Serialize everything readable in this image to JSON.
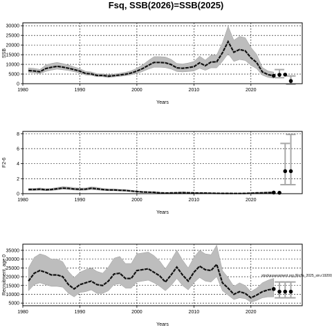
{
  "title": "Fsq, SSB(2026)=SSB(2025)",
  "chart_data": [
    {
      "type": "line",
      "ylabel": "SSB",
      "xlabel": "Years",
      "xlim": [
        1980,
        2029
      ],
      "ylim": [
        0,
        31500
      ],
      "xticks": [
        1980,
        1990,
        2000,
        2010,
        2020
      ],
      "yticks": [
        0,
        5000,
        10000,
        15000,
        20000,
        25000,
        30000
      ],
      "grid": true,
      "years": [
        1981,
        1982,
        1983,
        1984,
        1985,
        1986,
        1987,
        1988,
        1989,
        1990,
        1991,
        1992,
        1993,
        1994,
        1995,
        1996,
        1997,
        1998,
        1999,
        2000,
        2001,
        2002,
        2003,
        2004,
        2005,
        2006,
        2007,
        2008,
        2009,
        2010,
        2011,
        2012,
        2013,
        2014,
        2015,
        2016,
        2017,
        2018,
        2019,
        2020,
        2021,
        2022,
        2023,
        2024
      ],
      "estimate": [
        6800,
        6600,
        6200,
        7800,
        8500,
        9000,
        8600,
        8000,
        7300,
        6500,
        5300,
        5100,
        4300,
        4300,
        3900,
        4200,
        4500,
        4900,
        5500,
        6500,
        7800,
        9500,
        11000,
        11000,
        10800,
        9900,
        8200,
        8000,
        8300,
        8800,
        10800,
        9300,
        11200,
        11300,
        16000,
        21800,
        16300,
        17700,
        17000,
        13400,
        11000,
        6100,
        4700,
        4100
      ],
      "lower": [
        5800,
        5600,
        5200,
        6300,
        7000,
        7500,
        7200,
        6800,
        6200,
        5500,
        4500,
        4300,
        3600,
        3600,
        3200,
        3500,
        3800,
        4100,
        4600,
        5300,
        6300,
        7500,
        8500,
        8500,
        8300,
        7600,
        6300,
        6100,
        6300,
        6600,
        8000,
        6900,
        8200,
        8200,
        11500,
        15500,
        11500,
        12500,
        12000,
        9500,
        7800,
        4400,
        3300,
        2800
      ],
      "upper": [
        8200,
        7900,
        7400,
        9600,
        10500,
        11000,
        10400,
        9700,
        8700,
        7800,
        6400,
        6100,
        5200,
        5100,
        4700,
        5000,
        5400,
        5900,
        6700,
        8000,
        9700,
        12000,
        14000,
        14000,
        13800,
        12600,
        10500,
        10200,
        10700,
        11500,
        14300,
        12200,
        14800,
        14900,
        21200,
        29700,
        22500,
        24500,
        23800,
        18800,
        15200,
        8400,
        6600,
        6000
      ],
      "points": [
        {
          "x": 2024,
          "y": 4100
        },
        {
          "x": 2025,
          "y": 4600
        },
        {
          "x": 2026,
          "y": 4700
        },
        {
          "x": 2027,
          "y": 1400
        }
      ],
      "intervals": [
        {
          "x": 2025,
          "lo": 3100,
          "hi": 7300
        },
        {
          "x": 2027,
          "lo": -300,
          "hi": 4000
        }
      ]
    },
    {
      "type": "line",
      "ylabel": "F2-6",
      "xlabel": "Years",
      "xlim": [
        1980,
        2029
      ],
      "ylim": [
        0,
        8.3
      ],
      "xticks": [
        1980,
        1990,
        2000,
        2010,
        2020
      ],
      "yticks": [
        0,
        2,
        4,
        6,
        8
      ],
      "grid": true,
      "years": [
        1981,
        1982,
        1983,
        1984,
        1985,
        1986,
        1987,
        1988,
        1989,
        1990,
        1991,
        1992,
        1993,
        1994,
        1995,
        1996,
        1997,
        1998,
        1999,
        2000,
        2001,
        2002,
        2003,
        2004,
        2005,
        2006,
        2007,
        2008,
        2009,
        2010,
        2011,
        2012,
        2013,
        2014,
        2015,
        2016,
        2017,
        2018,
        2019,
        2020,
        2021,
        2022,
        2023,
        2024
      ],
      "estimate": [
        0.55,
        0.55,
        0.6,
        0.52,
        0.55,
        0.65,
        0.75,
        0.7,
        0.62,
        0.58,
        0.6,
        0.72,
        0.65,
        0.55,
        0.5,
        0.5,
        0.45,
        0.42,
        0.35,
        0.28,
        0.22,
        0.2,
        0.18,
        0.12,
        0.08,
        0.1,
        0.12,
        0.15,
        0.12,
        0.1,
        0.08,
        0.08,
        0.06,
        0.05,
        0.04,
        0.04,
        0.03,
        0.03,
        0.04,
        0.06,
        0.1,
        0.12,
        0.15,
        0.15
      ],
      "lower": [
        0.42,
        0.42,
        0.46,
        0.4,
        0.42,
        0.5,
        0.58,
        0.54,
        0.48,
        0.45,
        0.46,
        0.55,
        0.5,
        0.42,
        0.38,
        0.38,
        0.34,
        0.32,
        0.26,
        0.21,
        0.16,
        0.15,
        0.13,
        0.09,
        0.06,
        0.07,
        0.09,
        0.11,
        0.09,
        0.07,
        0.06,
        0.06,
        0.04,
        0.03,
        0.03,
        0.03,
        0.02,
        0.02,
        0.03,
        0.04,
        0.07,
        0.08,
        0.1,
        0.1
      ],
      "upper": [
        0.7,
        0.7,
        0.76,
        0.66,
        0.7,
        0.82,
        0.95,
        0.9,
        0.8,
        0.74,
        0.76,
        0.92,
        0.84,
        0.7,
        0.64,
        0.64,
        0.58,
        0.54,
        0.46,
        0.37,
        0.3,
        0.27,
        0.24,
        0.16,
        0.11,
        0.14,
        0.16,
        0.2,
        0.16,
        0.14,
        0.11,
        0.11,
        0.09,
        0.07,
        0.06,
        0.06,
        0.05,
        0.05,
        0.06,
        0.09,
        0.14,
        0.17,
        0.21,
        0.22
      ],
      "points": [
        {
          "x": 2024,
          "y": 0.15
        },
        {
          "x": 2025,
          "y": 0.12
        },
        {
          "x": 2026,
          "y": 3.0
        },
        {
          "x": 2027,
          "y": 3.0
        }
      ],
      "intervals": [
        {
          "x": 2026,
          "lo": 1.2,
          "hi": 6.7
        },
        {
          "x": 2027,
          "lo": 1.2,
          "hi": 7.9
        }
      ]
    },
    {
      "type": "line",
      "ylabel": "Recruitment, age 0",
      "xlabel": "Years",
      "xlim": [
        1980,
        2029
      ],
      "ylim": [
        3500,
        38500
      ],
      "xticks": [
        1980,
        1990,
        2000,
        2010,
        2020
      ],
      "yticks": [
        5000,
        10000,
        15000,
        20000,
        25000,
        30000,
        35000
      ],
      "grid": true,
      "annotation": "stockassessment.org (RoTa_2025_sin.r19200_g8.1cor)",
      "years": [
        1981,
        1982,
        1983,
        1984,
        1985,
        1986,
        1987,
        1988,
        1989,
        1990,
        1991,
        1992,
        1993,
        1994,
        1995,
        1996,
        1997,
        1998,
        1999,
        2000,
        2001,
        2002,
        2003,
        2004,
        2005,
        2006,
        2007,
        2008,
        2009,
        2010,
        2011,
        2012,
        2013,
        2014,
        2015,
        2016,
        2017,
        2018,
        2019,
        2020,
        2021,
        2022,
        2023,
        2024
      ],
      "estimate": [
        17500,
        22000,
        23500,
        22500,
        21000,
        21000,
        20000,
        15500,
        13000,
        15500,
        16500,
        17500,
        15500,
        15000,
        17500,
        21500,
        22000,
        19000,
        19000,
        23500,
        24000,
        24500,
        22500,
        20500,
        17000,
        21000,
        25500,
        21000,
        17500,
        22500,
        26000,
        24000,
        23500,
        27000,
        16500,
        13500,
        10000,
        11500,
        10500,
        8000,
        9500,
        11500,
        12500,
        13000
      ],
      "lower": [
        12000,
        15500,
        16500,
        15500,
        14500,
        14500,
        14000,
        10500,
        8500,
        11000,
        11500,
        12500,
        10500,
        10500,
        12000,
        15500,
        16000,
        13500,
        13500,
        17000,
        17500,
        18000,
        16500,
        14500,
        12000,
        15000,
        19000,
        15000,
        12500,
        16500,
        19500,
        17500,
        17000,
        20000,
        12000,
        9500,
        7000,
        8000,
        7500,
        5500,
        6500,
        8000,
        8500,
        8500
      ],
      "upper": [
        25000,
        31000,
        33000,
        32000,
        30000,
        30000,
        28500,
        23000,
        19500,
        22500,
        24000,
        25000,
        23000,
        22000,
        25500,
        30500,
        31500,
        27500,
        27500,
        33000,
        33500,
        34000,
        32000,
        29000,
        24500,
        29500,
        35000,
        29500,
        25000,
        31000,
        35000,
        33000,
        32500,
        38000,
        23500,
        19500,
        14500,
        16500,
        15000,
        11500,
        13500,
        16500,
        18000,
        19000
      ],
      "points": [
        {
          "x": 2024,
          "y": 13000
        },
        {
          "x": 2025,
          "y": 11500
        },
        {
          "x": 2026,
          "y": 11500
        },
        {
          "x": 2027,
          "y": 11500
        }
      ],
      "intervals": [
        {
          "x": 2025,
          "lo": 8000,
          "hi": 17000
        },
        {
          "x": 2026,
          "lo": 8000,
          "hi": 17000
        },
        {
          "x": 2027,
          "lo": 8000,
          "hi": 17000
        }
      ]
    }
  ]
}
